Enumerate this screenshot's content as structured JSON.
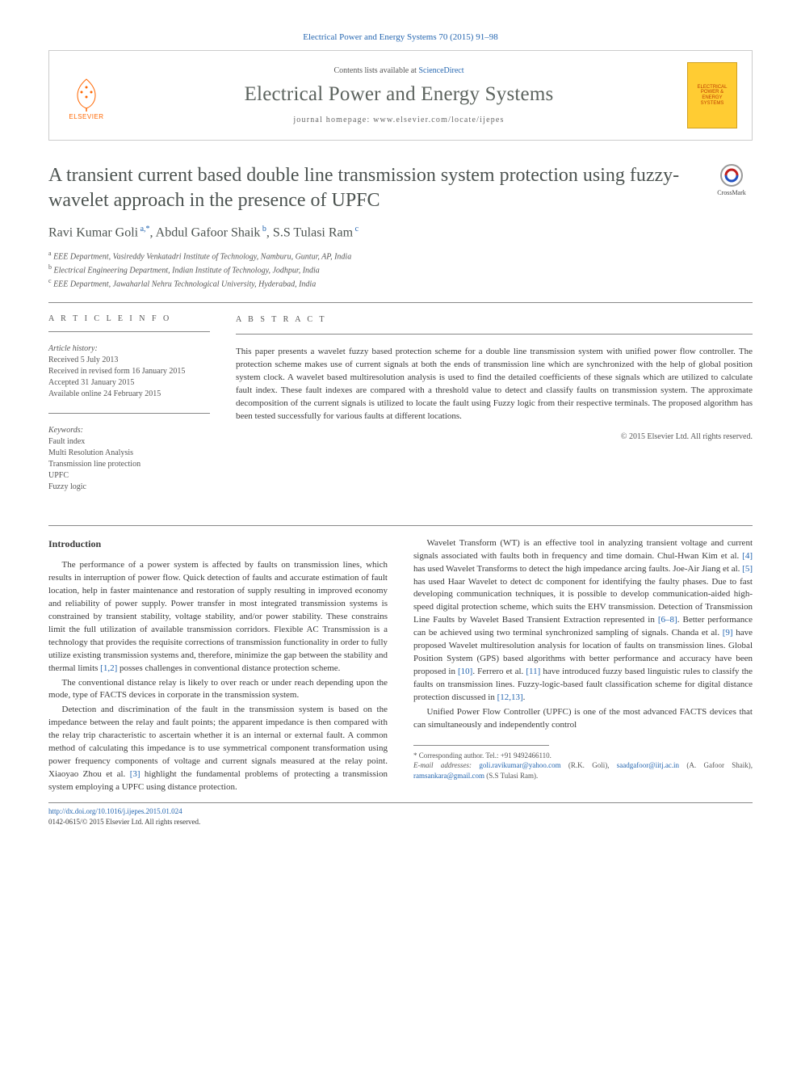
{
  "colors": {
    "link": "#2566b0",
    "text": "#3a3a3a",
    "muted": "#555555",
    "heading": "#4c5350",
    "elsevier_orange": "#ff6600",
    "cover_bg": "#ffcc33",
    "cover_text": "#c04000",
    "rule": "#888888"
  },
  "fonts": {
    "body_family": "Georgia, Times New Roman, serif",
    "body_size_pt": 11,
    "title_size_pt": 24,
    "journal_size_pt": 25,
    "section_head_size_pt": 10
  },
  "header": {
    "citation": "Electrical Power and Energy Systems 70 (2015) 91–98",
    "contents_prefix": "Contents lists available at ",
    "contents_link": "ScienceDirect",
    "journal": "Electrical Power and Energy Systems",
    "homepage": "journal homepage: www.elsevier.com/locate/ijepes",
    "elsevier_brand": "ELSEVIER",
    "cover_text": "ELECTRICAL POWER & ENERGY SYSTEMS"
  },
  "crossmark": "CrossMark",
  "title": "A transient current based double line transmission system protection using fuzzy-wavelet approach in the presence of UPFC",
  "authors_html": "Ravi Kumar Goli<sup> a,*</sup>, Abdul Gafoor Shaik<sup> b</sup>, S.S Tulasi Ram<sup> c</sup>",
  "affiliations": [
    "a EEE Department, Vasireddy Venkatadri Institute of Technology, Namburu, Guntur, AP, India",
    "b Electrical Engineering Department, Indian Institute of Technology, Jodhpur, India",
    "c EEE Department, Jawaharlal Nehru Technological University, Hyderabad, India"
  ],
  "article_info": {
    "head": "A R T I C L E   I N F O",
    "history_label": "Article history:",
    "history": [
      "Received 5 July 2013",
      "Received in revised form 16 January 2015",
      "Accepted 31 January 2015",
      "Available online 24 February 2015"
    ],
    "keywords_label": "Keywords:",
    "keywords": [
      "Fault index",
      "Multi Resolution Analysis",
      "Transmission line protection",
      "UPFC",
      "Fuzzy logic"
    ]
  },
  "abstract": {
    "head": "A B S T R A C T",
    "text": "This paper presents a wavelet fuzzy based protection scheme for a double line transmission system with unified power flow controller. The protection scheme makes use of current signals at both the ends of transmission line which are synchronized with the help of global position system clock. A wavelet based multiresolution analysis is used to find the detailed coefficients of these signals which are utilized to calculate fault index. These fault indexes are compared with a threshold value to detect and classify faults on transmission system. The approximate decomposition of the current signals is utilized to locate the fault using Fuzzy logic from their respective terminals. The proposed algorithm has been tested successfully for various faults at different locations.",
    "copyright": "© 2015 Elsevier Ltd. All rights reserved."
  },
  "body": {
    "intro_head": "Introduction",
    "paragraphs": [
      "The performance of a power system is affected by faults on transmission lines, which results in interruption of power flow. Quick detection of faults and accurate estimation of fault location, help in faster maintenance and restoration of supply resulting in improved economy and reliability of power supply. Power transfer in most integrated transmission systems is constrained by transient stability, voltage stability, and/or power stability. These constrains limit the full utilization of available transmission corridors. Flexible AC Transmission is a technology that provides the requisite corrections of transmission functionality in order to fully utilize existing transmission systems and, therefore, minimize the gap between the stability and thermal limits [1,2] posses challenges in conventional distance protection scheme.",
      "The conventional distance relay is likely to over reach or under reach depending upon the mode, type of FACTS devices in corporate in the transmission system.",
      "Detection and discrimination of the fault in the transmission system is based on the impedance between the relay and fault points; the apparent impedance is then compared with the relay trip characteristic to ascertain whether it is an internal or external fault. A common method of calculating this impedance is to use symmetrical component transformation using power frequency components of voltage and current signals measured at the relay point. Xiaoyao Zhou et al. [3] highlight the fundamental problems of protecting a transmission system employing a UPFC using distance protection.",
      "Wavelet Transform (WT) is an effective tool in analyzing transient voltage and current signals associated with faults both in frequency and time domain. Chul-Hwan Kim et al. [4] has used Wavelet Transforms to detect the high impedance arcing faults. Joe-Air Jiang et al. [5] has used Haar Wavelet to detect dc component for identifying the faulty phases. Due to fast developing communication techniques, it is possible to develop communication-aided high-speed digital protection scheme, which suits the EHV transmission. Detection of Transmission Line Faults by Wavelet Based Transient Extraction represented in [6–8]. Better performance can be achieved using two terminal synchronized sampling of signals. Chanda et al. [9] have proposed Wavelet multiresolution analysis for location of faults on transmission lines. Global Position System (GPS) based algorithms with better performance and accuracy have been proposed in [10]. Ferrero et al. [11] have introduced fuzzy based linguistic rules to classify the faults on transmission lines. Fuzzy-logic-based fault classification scheme for digital distance protection discussed in [12,13].",
      "Unified Power Flow Controller (UPFC) is one of the most advanced FACTS devices that can simultaneously and independently control"
    ],
    "ref_spans": [
      "[1,2]",
      "[3]",
      "[4]",
      "[5]",
      "[6–8]",
      "[9]",
      "[10]",
      "[11]",
      "[12,13]"
    ]
  },
  "footnotes": {
    "corresponding": "* Corresponding author. Tel.: +91 9492466110.",
    "emails_label": "E-mail addresses:",
    "emails": [
      {
        "addr": "goli.ravikumar@yahoo.com",
        "who": "(R.K. Goli)"
      },
      {
        "addr": "saadgafoor@iitj.ac.in",
        "who": "(A. Gafoor Shaik)"
      },
      {
        "addr": "ramsankara@gmail.com",
        "who": "(S.S Tulasi Ram)"
      }
    ]
  },
  "footer": {
    "doi": "http://dx.doi.org/10.1016/j.ijepes.2015.01.024",
    "issn_line": "0142-0615/© 2015 Elsevier Ltd. All rights reserved."
  }
}
